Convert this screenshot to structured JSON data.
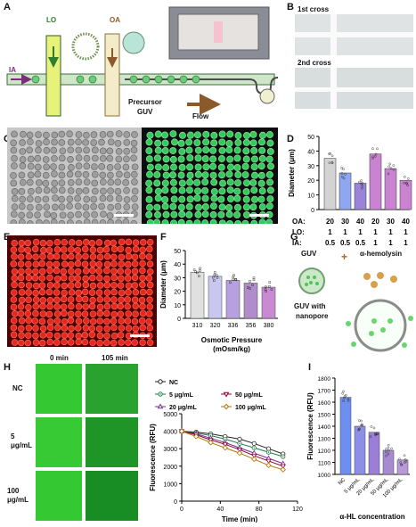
{
  "panels": {
    "A": "A",
    "B": "B",
    "C": "C",
    "D": "D",
    "E": "E",
    "F": "F",
    "G": "G",
    "H": "H",
    "I": "I"
  },
  "panelA": {
    "lo": "LO",
    "oa": "OA",
    "ia": "IA",
    "precursor1": "Precursor",
    "precursor2": "GUV",
    "flow": "Flow"
  },
  "panelB": {
    "first": "1st cross",
    "second": "2nd cross"
  },
  "panelG": {
    "guv": "GUV",
    "plus": "+",
    "hemolysin": "α-hemolysin",
    "result1": "GUV with",
    "result2": "nanopore"
  },
  "panelH": {
    "t0": "0 min",
    "t105": "105 min",
    "rows": [
      "NC",
      "5\nμg/mL",
      "100\nμg/mL"
    ]
  },
  "colors": {
    "green": "#2fd13a",
    "red": "#e0201a",
    "purple": "#9b62b8",
    "blue": "#6f8ff0",
    "pink": "#c77fd0",
    "gray": "#d0d0d0"
  },
  "chart_data": [
    {
      "id": "D",
      "type": "bar",
      "ylabel": "Diameter (μm)",
      "ylim": [
        0,
        50
      ],
      "yticks": [
        0,
        10,
        20,
        30,
        40,
        50
      ],
      "values": [
        35,
        25,
        18,
        38,
        28,
        20
      ],
      "colors": [
        "#d3d3d3",
        "#8fa7ef",
        "#9a84d8",
        "#c983d1",
        "#c983d1",
        "#c983d1"
      ],
      "param_labels": [
        "OA:",
        "LO:",
        "IA:"
      ],
      "params": [
        [
          "20",
          "1",
          "0.5"
        ],
        [
          "30",
          "1",
          "0.5"
        ],
        [
          "40",
          "1",
          "0.5"
        ],
        [
          "20",
          "1",
          "1"
        ],
        [
          "30",
          "1",
          "1"
        ],
        [
          "40",
          "1",
          "1"
        ]
      ]
    },
    {
      "id": "F",
      "type": "bar",
      "ylabel": "Diameter (μm)",
      "xlabel1": "Osmotic Pressure",
      "xlabel2": "(mOsm/kg)",
      "ylim": [
        0,
        50
      ],
      "yticks": [
        0,
        10,
        20,
        30,
        40,
        50
      ],
      "categories": [
        "310",
        "320",
        "336",
        "356",
        "380"
      ],
      "values": [
        34,
        31,
        28,
        26,
        23
      ],
      "colors": [
        "#e0e0e0",
        "#c8c8ef",
        "#b6a0e0",
        "#b08ccb",
        "#c88ad2"
      ]
    },
    {
      "id": "H",
      "type": "line",
      "xlabel": "Time (min)",
      "ylabel": "Fluorescence (RFU)",
      "ylim": [
        0,
        5000
      ],
      "xlim": [
        0,
        120
      ],
      "yticks": [
        0,
        1000,
        2000,
        3000,
        4000,
        5000
      ],
      "xticks": [
        0,
        40,
        80,
        120
      ],
      "x": [
        0,
        15,
        30,
        45,
        60,
        75,
        90,
        105
      ],
      "series": [
        {
          "name": "NC",
          "marker": "circle",
          "values": [
            4000,
            3950,
            3850,
            3700,
            3550,
            3300,
            3000,
            2700
          ]
        },
        {
          "name": "5 μg/mL",
          "marker": "circle-dot",
          "values": [
            4000,
            3900,
            3750,
            3550,
            3300,
            3050,
            2800,
            2550
          ]
        },
        {
          "name": "20 μg/mL",
          "marker": "triangle-up",
          "values": [
            4000,
            3850,
            3600,
            3350,
            3050,
            2750,
            2450,
            2150
          ]
        },
        {
          "name": "50 μg/mL",
          "marker": "triangle-down",
          "values": [
            4000,
            3800,
            3500,
            3250,
            2950,
            2600,
            2300,
            2000
          ]
        },
        {
          "name": "100 μg/mL",
          "marker": "diamond",
          "values": [
            4000,
            3700,
            3350,
            3050,
            2750,
            2400,
            2050,
            1800
          ]
        }
      ]
    },
    {
      "id": "I",
      "type": "bar",
      "ylabel": "Fluorescence (RFU)",
      "xlabel": "α-HL concentration",
      "ylim": [
        1000,
        1800
      ],
      "yticks": [
        1000,
        1100,
        1200,
        1300,
        1400,
        1500,
        1600,
        1700,
        1800
      ],
      "categories": [
        "NC",
        "5 μg/mL",
        "20 μg/mL",
        "50 μg/mL",
        "100 μg/mL"
      ],
      "values": [
        1640,
        1400,
        1350,
        1200,
        1120
      ],
      "colors": [
        "#6f8ff0",
        "#8d8ee6",
        "#9b7fd6",
        "#a88ad2",
        "#b79ad7"
      ]
    }
  ]
}
